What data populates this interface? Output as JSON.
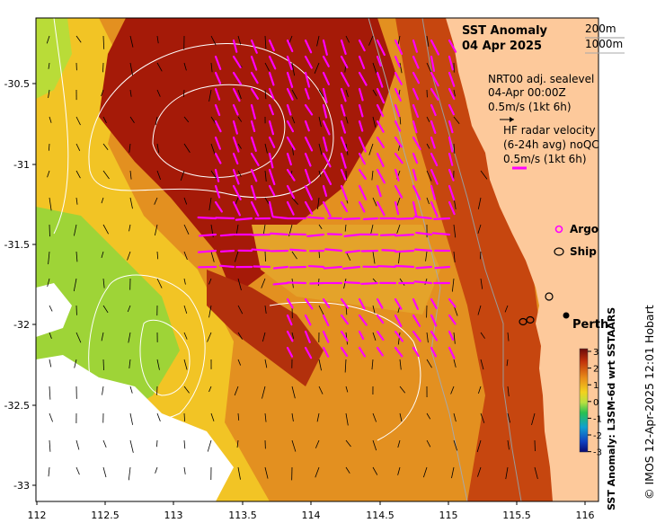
{
  "map": {
    "title_line1": "SST Anomaly",
    "title_line2": "04 Apr 2025",
    "depth_200": "200m",
    "depth_1000": "1000m",
    "sealevel_line1": "NRT00 adj. sealevel",
    "sealevel_line2": "04-Apr 00:00Z",
    "sealevel_scale": "0.5m/s (1kt 6h)",
    "radar_line1": "HF radar velocity",
    "radar_line2": "(6-24h avg) noQC",
    "radar_scale": "0.5m/s (1kt 6h)",
    "argo_label": "Argo",
    "ship_label": "Ship",
    "city_label": "Perth",
    "colorbar_title": "SST Anomaly: L3SM-6d wrt SSTAARS",
    "credit": "© IMOS 12-Apr-2025 12:01 Hobart",
    "x_ticks": [
      "112",
      "112.5",
      "113",
      "113.5",
      "114",
      "114.5",
      "115",
      "115.5",
      "116"
    ],
    "y_ticks": [
      "-30.5",
      "-31",
      "-31.5",
      "-32",
      "-32.5",
      "-33"
    ],
    "colorbar_ticks": [
      "3",
      "2",
      "1",
      "0",
      "-1",
      "-2",
      "-3"
    ],
    "lon_range": [
      112,
      116
    ],
    "lat_range": [
      -33.1,
      -30.1
    ],
    "colors": {
      "land": "#fdc99b",
      "ocean_warm": "#a01808",
      "ocean_mid": "#e0881a",
      "ocean_cool": "#f0c020",
      "anomaly_green": "#8fd13a",
      "radar_arrow": "#ff00ff",
      "contour": "#ffffff",
      "isobath": "#9a9a9a"
    }
  }
}
